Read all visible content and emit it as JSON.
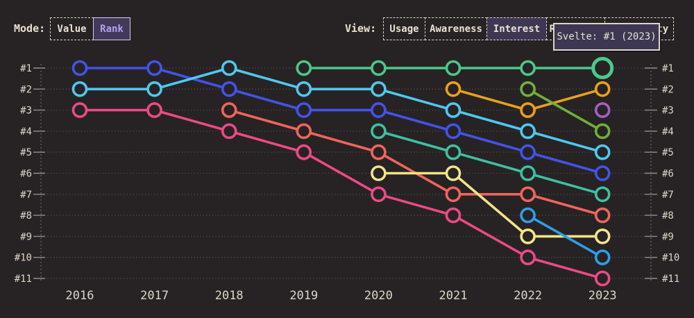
{
  "colors": {
    "background": "#272324",
    "text_cream": "#e8e0d2",
    "axis_label": "#ded6c8",
    "gridline": "#56504f",
    "axis_line": "#6b6563",
    "tick": "#968f86",
    "selected_mode_bg": "#413a58",
    "selected_mode_text": "#b3a2ec",
    "panel_bg": "#3d3753",
    "panel_border": "#ded6c8"
  },
  "header": {
    "mode": {
      "label": "Mode:",
      "options": [
        {
          "label": "Value",
          "selected": false
        },
        {
          "label": "Rank",
          "selected": true
        }
      ]
    },
    "view": {
      "label": "View:",
      "options": [
        {
          "label": "Usage",
          "selected": false
        },
        {
          "label": "Awareness",
          "selected": false
        },
        {
          "label": "Interest",
          "selected": true
        },
        {
          "label": "Retention",
          "selected": false
        },
        {
          "label": "Positivity",
          "selected": false
        }
      ]
    }
  },
  "tooltip": {
    "text": "Svelte: #1 (2023)"
  },
  "chart_data": {
    "type": "line",
    "subtype": "rank-bump-chart",
    "x": [
      2016,
      2017,
      2018,
      2019,
      2020,
      2021,
      2022,
      2023
    ],
    "y_ticks": [
      "#1",
      "#2",
      "#3",
      "#4",
      "#5",
      "#6",
      "#7",
      "#8",
      "#9",
      "#10",
      "#11"
    ],
    "y_range": [
      1,
      11
    ],
    "y_axis": "rank (best #1 on top, axis labels on both sides)",
    "grid": "dotted horizontal gridlines per rank",
    "legend": "none",
    "series": [
      {
        "name": "blue-line",
        "color": "#4353e9",
        "ranks": [
          1,
          1,
          2,
          3,
          3,
          4,
          5,
          6
        ]
      },
      {
        "name": "cyan-line",
        "color": "#50c8f0",
        "ranks": [
          2,
          2,
          1,
          2,
          2,
          3,
          4,
          5
        ]
      },
      {
        "name": "pink-line",
        "color": "#eb4a87",
        "ranks": [
          3,
          3,
          4,
          5,
          7,
          8,
          10,
          11
        ]
      },
      {
        "name": "coral-line",
        "color": "#f0655c",
        "ranks": [
          null,
          null,
          3,
          4,
          5,
          7,
          7,
          8
        ]
      },
      {
        "name": "svelte-green-line",
        "color": "#4cc98b",
        "ranks": [
          null,
          null,
          null,
          1,
          1,
          1,
          1,
          1
        ]
      },
      {
        "name": "teal-line",
        "color": "#3fc0a2",
        "ranks": [
          null,
          null,
          null,
          null,
          4,
          5,
          6,
          7
        ]
      },
      {
        "name": "yellow-line",
        "color": "#f3e488",
        "ranks": [
          null,
          null,
          null,
          null,
          6,
          6,
          9,
          9
        ]
      },
      {
        "name": "orange-line",
        "color": "#e9a01f",
        "ranks": [
          null,
          null,
          null,
          null,
          null,
          2,
          3,
          2
        ]
      },
      {
        "name": "olive-line",
        "color": "#70b03c",
        "ranks": [
          null,
          null,
          null,
          null,
          null,
          null,
          2,
          4
        ]
      },
      {
        "name": "azure-line",
        "color": "#2f9ee9",
        "ranks": [
          null,
          null,
          null,
          null,
          null,
          null,
          8,
          10
        ]
      },
      {
        "name": "purple-line",
        "color": "#a85cc8",
        "ranks": [
          null,
          null,
          null,
          null,
          null,
          null,
          null,
          3
        ]
      }
    ],
    "highlight": {
      "series": "svelte-green-line",
      "year": 2023,
      "rank": 1,
      "tooltip": "Svelte: #1 (2023)"
    }
  }
}
